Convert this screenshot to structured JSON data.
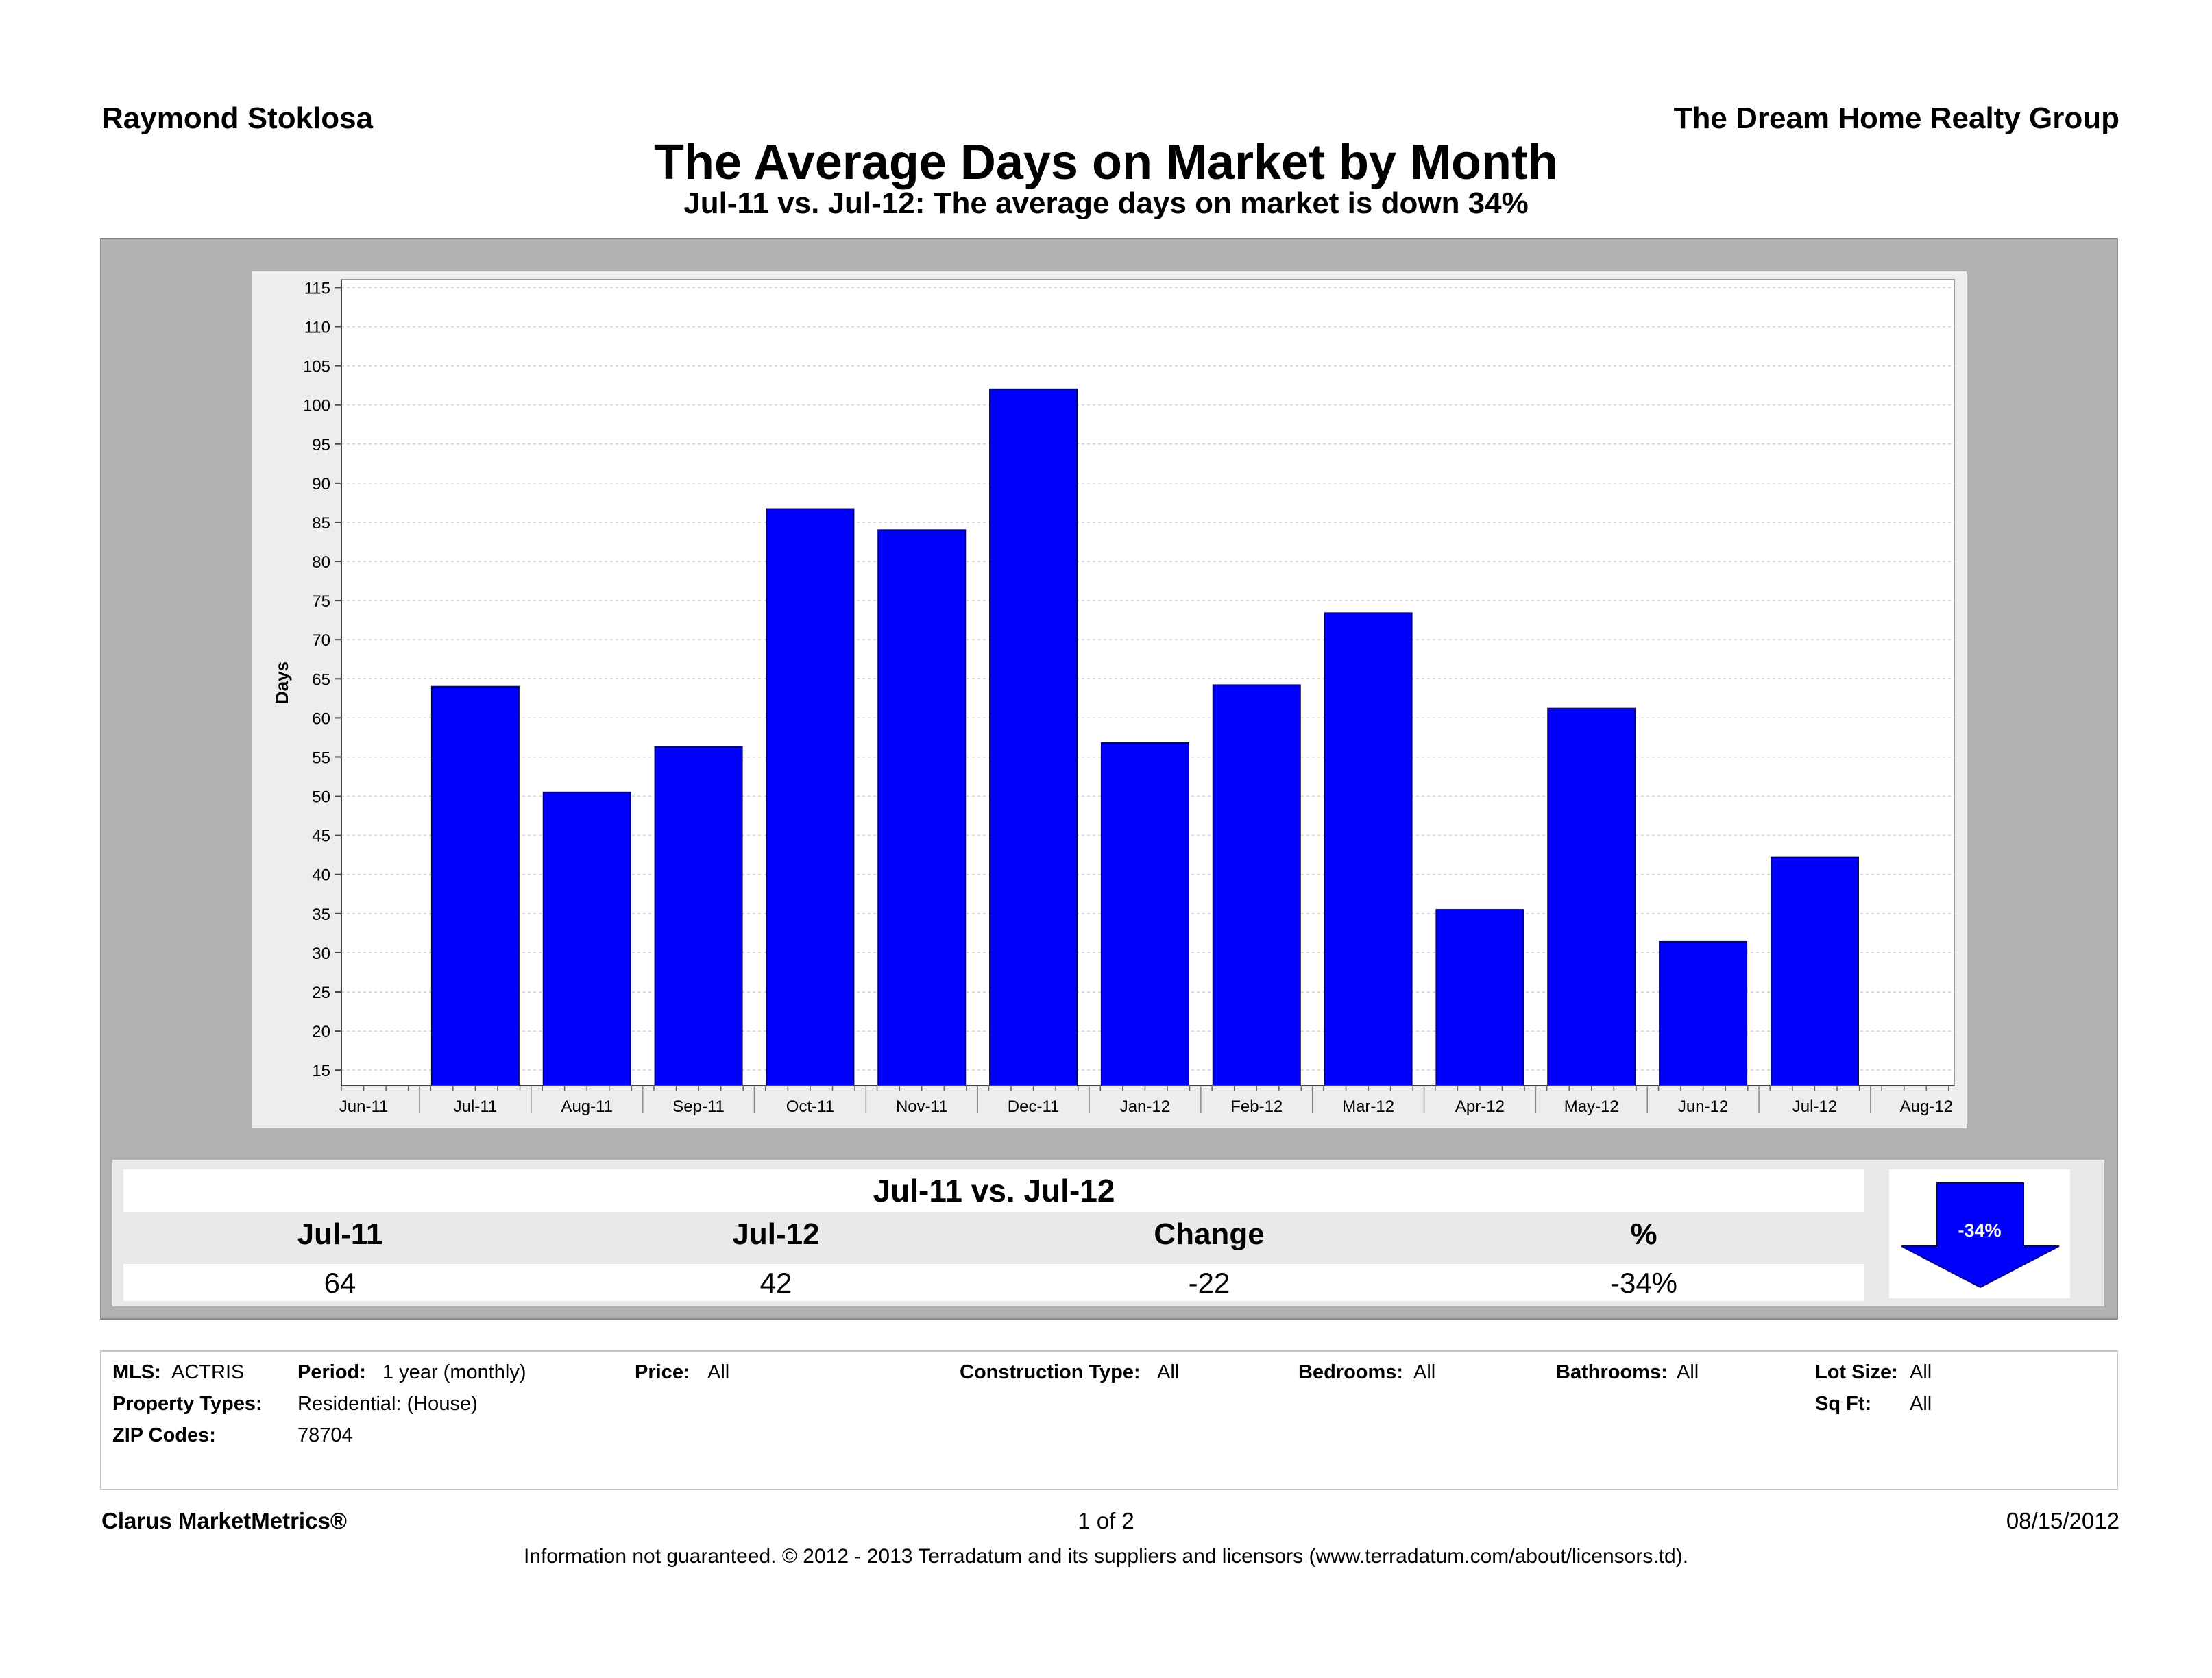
{
  "header": {
    "agent": "Raymond Stoklosa",
    "company": "The Dream Home Realty Group"
  },
  "title": "The Average Days on Market by Month",
  "subtitle": "Jul-11 vs. Jul-12:  The average days on market is down 34%",
  "chart_data": {
    "type": "bar",
    "ylabel": "Days",
    "xlabel": "",
    "ylim": [
      13,
      116
    ],
    "yticks": [
      15,
      20,
      25,
      30,
      35,
      40,
      45,
      50,
      55,
      60,
      65,
      70,
      75,
      80,
      85,
      90,
      95,
      100,
      105,
      110,
      115
    ],
    "x_axis_labels": [
      "Jun-11",
      "Jul-11",
      "Aug-11",
      "Sep-11",
      "Oct-11",
      "Nov-11",
      "Dec-11",
      "Jan-12",
      "Feb-12",
      "Mar-12",
      "Apr-12",
      "May-12",
      "Jun-12",
      "Jul-12",
      "Aug-12"
    ],
    "categories": [
      "Jul-11",
      "Aug-11",
      "Sep-11",
      "Oct-11",
      "Nov-11",
      "Dec-11",
      "Jan-12",
      "Feb-12",
      "Mar-12",
      "Apr-12",
      "May-12",
      "Jun-12",
      "Jul-12"
    ],
    "values": [
      64,
      50.5,
      56.3,
      86.7,
      84,
      102,
      56.8,
      64.2,
      73.4,
      35.5,
      61.2,
      31.4,
      42.2
    ],
    "bar_color": "#0000ff",
    "grid": true
  },
  "comparison": {
    "title": "Jul-11 vs. Jul-12",
    "headers": [
      "Jul-11",
      "Jul-12",
      "Change",
      "%"
    ],
    "values": [
      "64",
      "42",
      "-22",
      "-34%"
    ],
    "arrow_label": "-34%",
    "arrow_color": "#0000ff"
  },
  "filters": {
    "mls_label": "MLS:",
    "mls_value": "ACTRIS",
    "period_label": "Period:",
    "period_value": "1 year (monthly)",
    "price_label": "Price:",
    "price_value": "All",
    "construction_label": "Construction Type:",
    "construction_value": "All",
    "bedrooms_label": "Bedrooms:",
    "bedrooms_value": "All",
    "bathrooms_label": "Bathrooms:",
    "bathrooms_value": "All",
    "lotsize_label": "Lot Size:",
    "lotsize_value": "All",
    "proptypes_label": "Property Types:",
    "proptypes_value": "Residential: (House)",
    "sqft_label": "Sq Ft:",
    "sqft_value": "All",
    "zip_label": "ZIP Codes:",
    "zip_value": "78704"
  },
  "footer": {
    "brand": "Clarus MarketMetrics®",
    "page": "1 of 2",
    "date": "08/15/2012",
    "disclaimer": "Information not guaranteed.  © 2012 - 2013 Terradatum and its suppliers and licensors (www.terradatum.com/about/licensors.td)."
  }
}
